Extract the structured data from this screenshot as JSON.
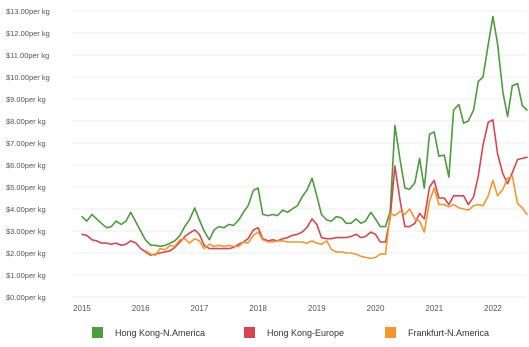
{
  "chart_data": {
    "type": "line",
    "title": "",
    "xlabel": "",
    "ylabel": "",
    "xlim": [
      2014.83,
      2022.58
    ],
    "ylim": [
      0,
      13
    ],
    "x_ticks": [
      "2015",
      "2016",
      "2017",
      "2018",
      "2019",
      "2020",
      "2021",
      "2022"
    ],
    "y_ticks": [
      "$0.00per kg",
      "$1.00per kg",
      "$2.00per kg",
      "$3.00per kg",
      "$4.00per kg",
      "$5.00per kg",
      "$6.00per kg",
      "$7.00per kg",
      "$8.00per kg",
      "$9.00per kg",
      "$10.00per kg",
      "$11.00per kg",
      "$12.00per kg",
      "$13.00per kg"
    ],
    "grid": "horizontal",
    "legend_position": "bottom",
    "series": [
      {
        "name": "Hong Kong-N.America",
        "color": "#4d9a3f",
        "points": [
          [
            2015.0,
            3.65
          ],
          [
            2015.08,
            3.45
          ],
          [
            2015.17,
            3.75
          ],
          [
            2015.25,
            3.55
          ],
          [
            2015.33,
            3.35
          ],
          [
            2015.42,
            3.15
          ],
          [
            2015.5,
            3.2
          ],
          [
            2015.58,
            3.45
          ],
          [
            2015.67,
            3.3
          ],
          [
            2015.75,
            3.45
          ],
          [
            2015.83,
            3.85
          ],
          [
            2015.92,
            3.4
          ],
          [
            2016.0,
            3.0
          ],
          [
            2016.08,
            2.6
          ],
          [
            2016.17,
            2.35
          ],
          [
            2016.25,
            2.35
          ],
          [
            2016.33,
            2.3
          ],
          [
            2016.42,
            2.35
          ],
          [
            2016.5,
            2.45
          ],
          [
            2016.58,
            2.55
          ],
          [
            2016.67,
            2.8
          ],
          [
            2016.75,
            3.2
          ],
          [
            2016.83,
            3.5
          ],
          [
            2016.92,
            4.05
          ],
          [
            2017.0,
            3.5
          ],
          [
            2017.08,
            3.0
          ],
          [
            2017.17,
            2.6
          ],
          [
            2017.25,
            3.05
          ],
          [
            2017.33,
            3.2
          ],
          [
            2017.42,
            3.15
          ],
          [
            2017.5,
            3.3
          ],
          [
            2017.58,
            3.25
          ],
          [
            2017.67,
            3.5
          ],
          [
            2017.75,
            3.85
          ],
          [
            2017.83,
            4.15
          ],
          [
            2017.92,
            4.85
          ],
          [
            2018.0,
            4.95
          ],
          [
            2018.08,
            3.75
          ],
          [
            2018.17,
            3.7
          ],
          [
            2018.25,
            3.75
          ],
          [
            2018.33,
            3.7
          ],
          [
            2018.42,
            3.95
          ],
          [
            2018.5,
            3.85
          ],
          [
            2018.58,
            4.0
          ],
          [
            2018.67,
            4.15
          ],
          [
            2018.75,
            4.55
          ],
          [
            2018.83,
            4.85
          ],
          [
            2018.92,
            5.4
          ],
          [
            2019.0,
            4.6
          ],
          [
            2019.08,
            3.75
          ],
          [
            2019.17,
            3.5
          ],
          [
            2019.25,
            3.45
          ],
          [
            2019.33,
            3.65
          ],
          [
            2019.42,
            3.6
          ],
          [
            2019.5,
            3.35
          ],
          [
            2019.58,
            3.35
          ],
          [
            2019.67,
            3.55
          ],
          [
            2019.75,
            3.35
          ],
          [
            2019.83,
            3.45
          ],
          [
            2019.92,
            3.85
          ],
          [
            2020.0,
            3.55
          ],
          [
            2020.08,
            3.2
          ],
          [
            2020.17,
            3.2
          ],
          [
            2020.25,
            3.9
          ],
          [
            2020.33,
            7.8
          ],
          [
            2020.42,
            6.2
          ],
          [
            2020.5,
            4.95
          ],
          [
            2020.58,
            4.9
          ],
          [
            2020.67,
            5.2
          ],
          [
            2020.75,
            6.3
          ],
          [
            2020.83,
            4.95
          ],
          [
            2020.92,
            7.4
          ],
          [
            2021.0,
            7.5
          ],
          [
            2021.08,
            6.4
          ],
          [
            2021.17,
            6.45
          ],
          [
            2021.25,
            5.45
          ],
          [
            2021.33,
            8.5
          ],
          [
            2021.42,
            8.75
          ],
          [
            2021.5,
            7.9
          ],
          [
            2021.58,
            8.0
          ],
          [
            2021.67,
            8.5
          ],
          [
            2021.75,
            9.8
          ],
          [
            2021.83,
            10.0
          ],
          [
            2021.92,
            11.5
          ],
          [
            2022.0,
            12.75
          ],
          [
            2022.08,
            11.5
          ],
          [
            2022.17,
            9.3
          ],
          [
            2022.25,
            8.2
          ],
          [
            2022.33,
            9.6
          ],
          [
            2022.42,
            9.7
          ],
          [
            2022.5,
            8.7
          ],
          [
            2022.58,
            8.5
          ]
        ]
      },
      {
        "name": "Hong Kong-Europe",
        "color": "#d9454f",
        "points": [
          [
            2015.0,
            2.85
          ],
          [
            2015.08,
            2.8
          ],
          [
            2015.17,
            2.6
          ],
          [
            2015.25,
            2.55
          ],
          [
            2015.33,
            2.45
          ],
          [
            2015.42,
            2.45
          ],
          [
            2015.5,
            2.4
          ],
          [
            2015.58,
            2.45
          ],
          [
            2015.67,
            2.35
          ],
          [
            2015.75,
            2.4
          ],
          [
            2015.83,
            2.55
          ],
          [
            2015.92,
            2.45
          ],
          [
            2016.0,
            2.2
          ],
          [
            2016.08,
            2.05
          ],
          [
            2016.17,
            1.9
          ],
          [
            2016.25,
            1.95
          ],
          [
            2016.33,
            2.0
          ],
          [
            2016.42,
            2.05
          ],
          [
            2016.5,
            2.1
          ],
          [
            2016.58,
            2.25
          ],
          [
            2016.67,
            2.5
          ],
          [
            2016.75,
            2.75
          ],
          [
            2016.83,
            2.9
          ],
          [
            2016.92,
            3.05
          ],
          [
            2017.0,
            2.85
          ],
          [
            2017.08,
            2.35
          ],
          [
            2017.17,
            2.2
          ],
          [
            2017.25,
            2.2
          ],
          [
            2017.33,
            2.2
          ],
          [
            2017.42,
            2.2
          ],
          [
            2017.5,
            2.2
          ],
          [
            2017.58,
            2.25
          ],
          [
            2017.67,
            2.4
          ],
          [
            2017.75,
            2.5
          ],
          [
            2017.83,
            2.65
          ],
          [
            2017.92,
            3.05
          ],
          [
            2018.0,
            3.15
          ],
          [
            2018.08,
            2.65
          ],
          [
            2018.17,
            2.55
          ],
          [
            2018.25,
            2.6
          ],
          [
            2018.33,
            2.55
          ],
          [
            2018.42,
            2.65
          ],
          [
            2018.5,
            2.7
          ],
          [
            2018.58,
            2.8
          ],
          [
            2018.67,
            2.85
          ],
          [
            2018.75,
            2.95
          ],
          [
            2018.83,
            3.15
          ],
          [
            2018.92,
            3.55
          ],
          [
            2019.0,
            3.3
          ],
          [
            2019.08,
            2.7
          ],
          [
            2019.17,
            2.65
          ],
          [
            2019.25,
            2.65
          ],
          [
            2019.33,
            2.7
          ],
          [
            2019.42,
            2.7
          ],
          [
            2019.5,
            2.7
          ],
          [
            2019.58,
            2.75
          ],
          [
            2019.67,
            2.85
          ],
          [
            2019.75,
            2.7
          ],
          [
            2019.83,
            2.75
          ],
          [
            2019.92,
            2.95
          ],
          [
            2020.0,
            2.85
          ],
          [
            2020.08,
            2.5
          ],
          [
            2020.17,
            2.5
          ],
          [
            2020.25,
            3.6
          ],
          [
            2020.33,
            5.95
          ],
          [
            2020.42,
            4.35
          ],
          [
            2020.5,
            3.2
          ],
          [
            2020.58,
            3.2
          ],
          [
            2020.67,
            3.35
          ],
          [
            2020.75,
            3.8
          ],
          [
            2020.83,
            3.55
          ],
          [
            2020.92,
            5.0
          ],
          [
            2021.0,
            5.3
          ],
          [
            2021.08,
            4.5
          ],
          [
            2021.17,
            4.5
          ],
          [
            2021.25,
            4.2
          ],
          [
            2021.33,
            4.6
          ],
          [
            2021.42,
            4.6
          ],
          [
            2021.5,
            4.6
          ],
          [
            2021.58,
            4.2
          ],
          [
            2021.67,
            4.55
          ],
          [
            2021.75,
            5.5
          ],
          [
            2021.83,
            6.9
          ],
          [
            2021.92,
            7.95
          ],
          [
            2022.0,
            8.05
          ],
          [
            2022.08,
            6.5
          ],
          [
            2022.17,
            5.6
          ],
          [
            2022.25,
            5.15
          ],
          [
            2022.33,
            5.65
          ],
          [
            2022.42,
            6.25
          ],
          [
            2022.5,
            6.3
          ],
          [
            2022.58,
            6.35
          ]
        ]
      },
      {
        "name": "Frankfurt-N.America",
        "color": "#f2962e",
        "points": [
          [
            2016.08,
            2.1
          ],
          [
            2016.17,
            1.95
          ],
          [
            2016.25,
            1.9
          ],
          [
            2016.33,
            2.2
          ],
          [
            2016.42,
            2.15
          ],
          [
            2016.5,
            2.35
          ],
          [
            2016.58,
            2.3
          ],
          [
            2016.67,
            2.6
          ],
          [
            2016.75,
            2.65
          ],
          [
            2016.83,
            2.45
          ],
          [
            2016.92,
            2.65
          ],
          [
            2017.0,
            2.55
          ],
          [
            2017.08,
            2.2
          ],
          [
            2017.17,
            2.4
          ],
          [
            2017.25,
            2.3
          ],
          [
            2017.33,
            2.35
          ],
          [
            2017.42,
            2.3
          ],
          [
            2017.5,
            2.35
          ],
          [
            2017.58,
            2.3
          ],
          [
            2017.67,
            2.3
          ],
          [
            2017.75,
            2.5
          ],
          [
            2017.83,
            2.45
          ],
          [
            2017.92,
            2.8
          ],
          [
            2018.0,
            2.95
          ],
          [
            2018.08,
            2.6
          ],
          [
            2018.17,
            2.5
          ],
          [
            2018.25,
            2.5
          ],
          [
            2018.33,
            2.55
          ],
          [
            2018.42,
            2.55
          ],
          [
            2018.5,
            2.5
          ],
          [
            2018.58,
            2.5
          ],
          [
            2018.67,
            2.5
          ],
          [
            2018.75,
            2.5
          ],
          [
            2018.83,
            2.45
          ],
          [
            2018.92,
            2.55
          ],
          [
            2019.0,
            2.45
          ],
          [
            2019.08,
            2.4
          ],
          [
            2019.17,
            2.55
          ],
          [
            2019.25,
            2.15
          ],
          [
            2019.33,
            2.05
          ],
          [
            2019.42,
            2.05
          ],
          [
            2019.5,
            2.0
          ],
          [
            2019.58,
            2.0
          ],
          [
            2019.67,
            1.95
          ],
          [
            2019.75,
            1.85
          ],
          [
            2019.83,
            1.8
          ],
          [
            2019.92,
            1.75
          ],
          [
            2020.0,
            1.8
          ],
          [
            2020.08,
            1.95
          ],
          [
            2020.17,
            1.95
          ],
          [
            2020.25,
            3.8
          ],
          [
            2020.33,
            3.7
          ],
          [
            2020.42,
            3.9
          ],
          [
            2020.5,
            3.75
          ],
          [
            2020.58,
            4.0
          ],
          [
            2020.67,
            3.55
          ],
          [
            2020.75,
            3.45
          ],
          [
            2020.83,
            2.95
          ],
          [
            2020.92,
            4.35
          ],
          [
            2021.0,
            4.95
          ],
          [
            2021.08,
            4.2
          ],
          [
            2021.17,
            4.2
          ],
          [
            2021.25,
            4.1
          ],
          [
            2021.33,
            4.2
          ],
          [
            2021.42,
            4.05
          ],
          [
            2021.5,
            4.0
          ],
          [
            2021.58,
            3.95
          ],
          [
            2021.67,
            4.15
          ],
          [
            2021.75,
            4.2
          ],
          [
            2021.83,
            4.15
          ],
          [
            2021.92,
            4.6
          ],
          [
            2022.0,
            5.3
          ],
          [
            2022.08,
            4.6
          ],
          [
            2022.17,
            4.9
          ],
          [
            2022.25,
            5.4
          ],
          [
            2022.33,
            5.5
          ],
          [
            2022.42,
            4.25
          ],
          [
            2022.5,
            4.05
          ],
          [
            2022.58,
            3.75
          ]
        ]
      }
    ]
  }
}
